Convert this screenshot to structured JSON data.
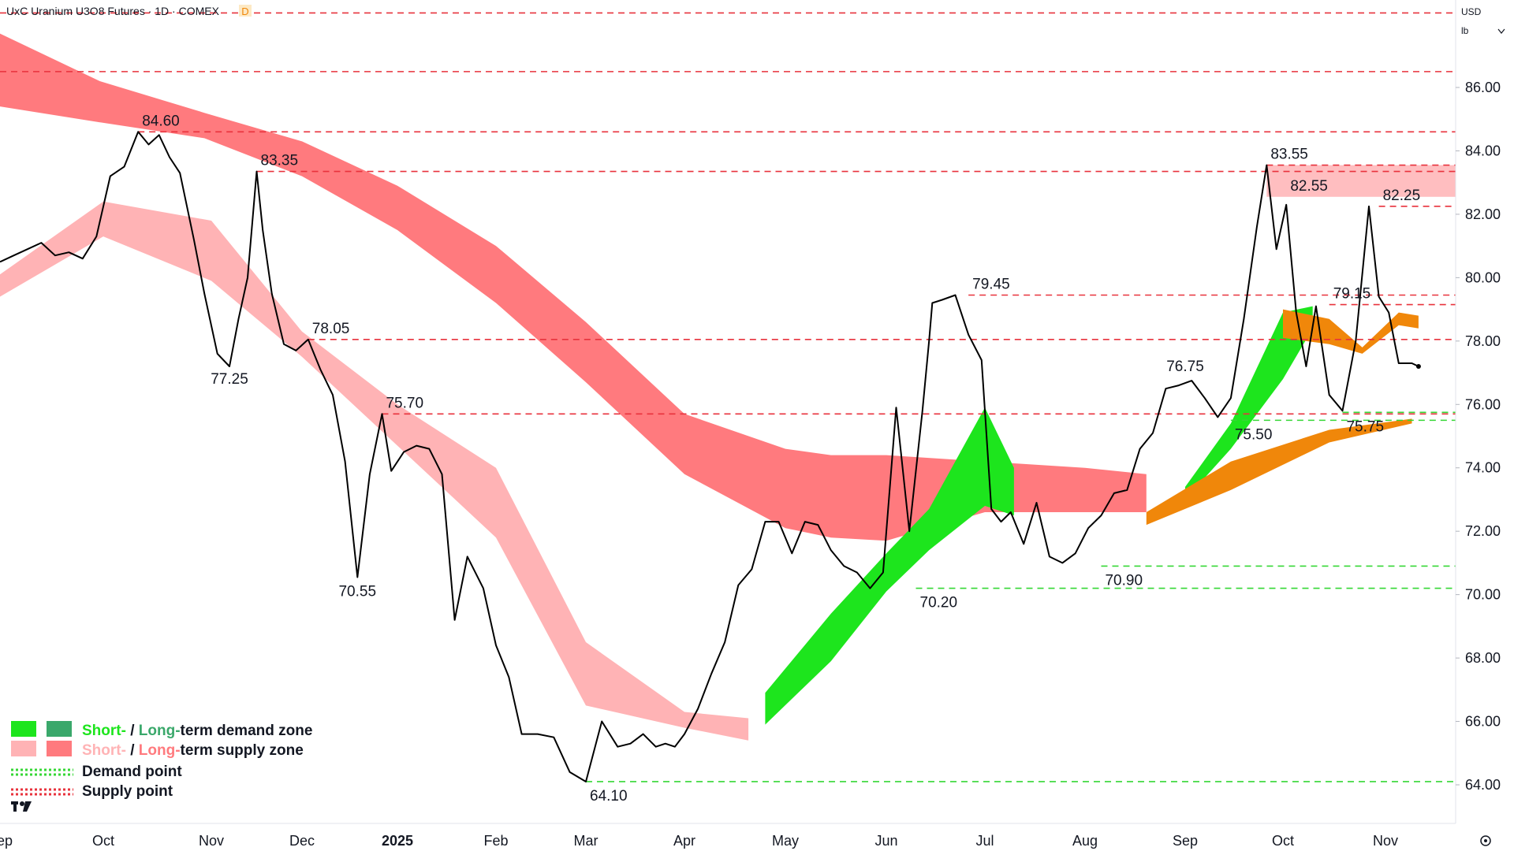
{
  "header": {
    "title": "UxC Uranium U3O8 Futures · 1D · COMEX",
    "badge": "D",
    "currency": "USD",
    "unit": "lb"
  },
  "colors": {
    "price_line": "#000000",
    "supply_line": "#e8323c",
    "demand_line": "#35d735",
    "short_demand": "#1de51d",
    "long_demand": "#3aa86b",
    "short_supply": "#ffb3b5",
    "long_supply": "#ff7a7e",
    "mixed_zone": "#f0870a"
  },
  "legend": {
    "items": [
      {
        "short": "Short-",
        "sep": " / ",
        "long": "Long-",
        "rest": "term demand zone",
        "short_color": "#1de51d",
        "long_color": "#3aa86b"
      },
      {
        "short": "Short-",
        "sep": " / ",
        "long": "Long-",
        "rest": "term supply zone",
        "short_color": "#ffb3b5",
        "long_color": "#ff7a7e"
      }
    ],
    "demand_point": "Demand point",
    "supply_point": "Supply point",
    "placement": "bottom-left"
  },
  "chart_data": {
    "type": "line",
    "title": "UxC Uranium U3O8 Futures · 1D · COMEX",
    "y_axis": {
      "ticks": [
        "86.00",
        "84.00",
        "82.00",
        "80.00",
        "78.00",
        "76.00",
        "74.00",
        "72.00",
        "70.00",
        "68.00",
        "66.00",
        "64.00"
      ],
      "range": [
        62.45,
        88.35
      ],
      "side": "right",
      "unit": "USD/lb"
    },
    "x_axis": {
      "ticks": [
        "Sep",
        "Oct",
        "Nov",
        "Dec",
        "2025",
        "Feb",
        "Mar",
        "Apr",
        "May",
        "Jun",
        "Jul",
        "Aug",
        "Sep",
        "Oct",
        "Nov"
      ],
      "bold": [
        "2025"
      ],
      "tick_dates": [
        "2024-09-01",
        "2024-10-01",
        "2024-11-01",
        "2024-12-01",
        "2025-01-01",
        "2025-02-01",
        "2025-03-01",
        "2025-04-01",
        "2025-05-01",
        "2025-06-01",
        "2025-07-01",
        "2025-08-01",
        "2025-09-01",
        "2025-10-01",
        "2025-11-01"
      ],
      "range": [
        "2024-09-01",
        "2025-11-21"
      ]
    },
    "grid": false,
    "series": [
      {
        "kind": "price",
        "x": [
          "2024-09-01",
          "2024-09-05",
          "2024-09-09",
          "2024-09-13",
          "2024-09-17",
          "2024-09-21",
          "2024-09-25",
          "2024-09-29",
          "2024-10-03",
          "2024-10-07",
          "2024-10-11",
          "2024-10-14",
          "2024-10-17",
          "2024-10-20",
          "2024-10-23",
          "2024-10-27",
          "2024-10-30",
          "2024-11-03",
          "2024-11-07",
          "2024-11-10",
          "2024-11-13",
          "2024-11-16",
          "2024-11-18",
          "2024-11-21",
          "2024-11-25",
          "2024-11-29",
          "2024-12-03",
          "2024-12-07",
          "2024-12-11",
          "2024-12-15",
          "2024-12-19",
          "2024-12-23",
          "2024-12-27",
          "2024-12-30",
          "2025-01-03",
          "2025-01-07",
          "2025-01-11",
          "2025-01-15",
          "2025-01-19",
          "2025-01-23",
          "2025-01-28",
          "2025-02-01",
          "2025-02-05",
          "2025-02-09",
          "2025-02-14",
          "2025-02-19",
          "2025-02-24",
          "2025-03-01",
          "2025-03-06",
          "2025-03-11",
          "2025-03-15",
          "2025-03-19",
          "2025-03-23",
          "2025-03-26",
          "2025-03-29",
          "2025-04-01",
          "2025-04-05",
          "2025-04-09",
          "2025-04-13",
          "2025-04-17",
          "2025-04-21",
          "2025-04-25",
          "2025-04-29",
          "2025-05-03",
          "2025-05-07",
          "2025-05-11",
          "2025-05-15",
          "2025-05-19",
          "2025-05-23",
          "2025-05-27",
          "2025-05-31",
          "2025-06-04",
          "2025-06-08",
          "2025-06-12",
          "2025-06-14",
          "2025-06-15",
          "2025-06-18",
          "2025-06-22",
          "2025-06-26",
          "2025-06-30",
          "2025-07-03",
          "2025-07-06",
          "2025-07-09",
          "2025-07-13",
          "2025-07-17",
          "2025-07-21",
          "2025-07-25",
          "2025-07-29",
          "2025-08-02",
          "2025-08-06",
          "2025-08-10",
          "2025-08-14",
          "2025-08-18",
          "2025-08-22",
          "2025-08-26",
          "2025-08-30",
          "2025-09-03",
          "2025-09-07",
          "2025-09-11",
          "2025-09-15",
          "2025-09-19",
          "2025-09-23",
          "2025-09-26",
          "2025-09-29",
          "2025-10-02",
          "2025-10-05",
          "2025-10-08",
          "2025-10-11",
          "2025-10-15",
          "2025-10-19",
          "2025-10-23",
          "2025-10-27",
          "2025-10-30",
          "2025-11-02",
          "2025-11-05",
          "2025-11-09",
          "2025-11-11"
        ],
        "values": [
          80.5,
          80.7,
          80.9,
          81.1,
          80.7,
          80.8,
          80.6,
          81.3,
          83.2,
          83.5,
          84.6,
          84.2,
          84.5,
          83.8,
          83.3,
          81.2,
          79.5,
          77.6,
          77.2,
          78.7,
          80.0,
          83.35,
          81.5,
          79.5,
          77.9,
          77.7,
          78.05,
          77.1,
          76.3,
          74.2,
          70.55,
          73.8,
          75.7,
          73.9,
          74.5,
          74.7,
          74.6,
          73.8,
          69.2,
          71.2,
          70.2,
          68.4,
          67.4,
          65.6,
          65.6,
          65.5,
          64.4,
          64.1,
          66.0,
          65.2,
          65.3,
          65.6,
          65.2,
          65.3,
          65.2,
          65.6,
          66.4,
          67.5,
          68.5,
          70.3,
          70.8,
          72.3,
          72.3,
          71.3,
          72.3,
          72.2,
          71.4,
          70.9,
          70.7,
          70.2,
          70.7,
          75.9,
          72.0,
          75.8,
          78.0,
          79.2,
          79.3,
          79.45,
          78.2,
          77.4,
          72.7,
          72.3,
          72.6,
          71.6,
          72.9,
          71.2,
          71.0,
          71.3,
          72.1,
          72.5,
          73.2,
          73.3,
          74.6,
          75.1,
          76.5,
          76.6,
          76.75,
          76.2,
          75.6,
          76.2,
          78.7,
          81.6,
          83.55,
          80.9,
          82.3,
          78.9,
          77.2,
          79.1,
          76.3,
          75.8,
          78.0,
          82.25,
          79.4,
          78.9,
          77.3,
          77.3,
          77.2
        ],
        "last_value": 77.2
      }
    ],
    "zones": [
      {
        "kind": "long-supply",
        "x": [
          "2024-09-01",
          "2024-09-30",
          "2024-10-30",
          "2024-12-01",
          "2025-01-01",
          "2025-02-01",
          "2025-03-01",
          "2025-04-01",
          "2025-05-01",
          "2025-05-15",
          "2025-06-01",
          "2025-07-01",
          "2025-08-01",
          "2025-08-20"
        ],
        "top": [
          87.7,
          86.2,
          85.2,
          84.3,
          82.9,
          81.0,
          78.6,
          75.7,
          74.6,
          74.4,
          74.4,
          74.2,
          74.0,
          73.8
        ],
        "bottom": [
          85.4,
          84.9,
          84.4,
          83.2,
          81.5,
          79.2,
          76.7,
          73.8,
          72.1,
          71.8,
          71.7,
          72.6,
          72.6,
          72.6
        ]
      },
      {
        "kind": "short-supply",
        "x": [
          "2024-09-01",
          "2024-10-01",
          "2024-11-01",
          "2024-12-01",
          "2025-01-01",
          "2025-02-01",
          "2025-03-01",
          "2025-04-01",
          "2025-04-20"
        ],
        "top": [
          80.1,
          82.4,
          81.8,
          78.3,
          76.0,
          74.0,
          68.5,
          66.3,
          66.1
        ],
        "bottom": [
          79.4,
          81.3,
          79.9,
          77.5,
          74.7,
          71.8,
          66.5,
          65.8,
          65.4
        ]
      },
      {
        "kind": "short-demand",
        "x": [
          "2025-04-25",
          "2025-05-15",
          "2025-06-01",
          "2025-06-14",
          "2025-07-01",
          "2025-07-10"
        ],
        "top": [
          66.9,
          69.4,
          71.3,
          72.7,
          75.9,
          74.0
        ],
        "bottom": [
          65.9,
          67.9,
          70.1,
          71.4,
          72.8,
          72.5
        ]
      },
      {
        "kind": "short-demand",
        "x": [
          "2025-09-01",
          "2025-09-15",
          "2025-10-01",
          "2025-10-10"
        ],
        "top": [
          73.4,
          75.4,
          78.9,
          79.1
        ],
        "bottom": [
          73.0,
          74.6,
          76.8,
          78.4
        ]
      },
      {
        "kind": "long-demand",
        "x": [
          "2025-08-20",
          "2025-09-15",
          "2025-10-15",
          "2025-11-09"
        ],
        "top": [
          72.6,
          74.2,
          75.2,
          75.55
        ],
        "bottom": [
          72.2,
          73.3,
          74.8,
          75.4
        ]
      },
      {
        "kind": "short-supply-recent",
        "x": [
          "2025-10-01",
          "2025-10-15",
          "2025-10-25",
          "2025-11-05",
          "2025-11-11"
        ],
        "top": [
          79.0,
          78.7,
          77.8,
          78.9,
          78.8
        ],
        "bottom": [
          78.1,
          77.9,
          77.6,
          78.5,
          78.4
        ]
      }
    ],
    "levels": [
      {
        "type": "supply",
        "value": 88.35,
        "from": "2024-09-01"
      },
      {
        "type": "supply",
        "value": 86.5,
        "from": "2024-09-01"
      },
      {
        "type": "supply",
        "value": 84.6,
        "from": "2024-10-11",
        "label": "84.60"
      },
      {
        "type": "supply",
        "value": 83.35,
        "from": "2024-11-16",
        "label": "83.35"
      },
      {
        "type": "supply",
        "value": 83.55,
        "from": "2025-09-26",
        "label": "83.55"
      },
      {
        "type": "supply",
        "value": 82.25,
        "from": "2025-10-30",
        "label": "82.25"
      },
      {
        "type": "supply",
        "value": 79.45,
        "from": "2025-06-26",
        "label": "79.45"
      },
      {
        "type": "supply",
        "value": 79.15,
        "from": "2025-10-15",
        "label": "79.15"
      },
      {
        "type": "supply",
        "value": 78.05,
        "from": "2024-12-03",
        "label": "78.05"
      },
      {
        "type": "supply",
        "value": 75.7,
        "from": "2024-12-27",
        "label": "75.70"
      },
      {
        "type": "demand",
        "value": 75.75,
        "from": "2025-10-19",
        "label": "75.75"
      },
      {
        "type": "demand",
        "value": 75.5,
        "from": "2025-09-15",
        "label": "75.50"
      },
      {
        "type": "demand",
        "value": 70.9,
        "from": "2025-08-06",
        "label": "70.90"
      },
      {
        "type": "demand",
        "value": 70.2,
        "from": "2025-06-10",
        "label": "70.20"
      },
      {
        "type": "demand",
        "value": 64.1,
        "from": "2025-03-01",
        "label": "64.10"
      }
    ],
    "lows_labels": [
      {
        "x": "2024-11-07",
        "value": 77.25,
        "label": "77.25"
      },
      {
        "x": "2024-12-19",
        "value": 70.55,
        "label": "70.55"
      },
      {
        "x": "2025-09-01",
        "value": 76.75,
        "label": "76.75"
      }
    ],
    "supply_zone_box": {
      "x_from": "2025-09-26",
      "top": 83.55,
      "bottom": 82.55,
      "label": "82.55"
    }
  }
}
